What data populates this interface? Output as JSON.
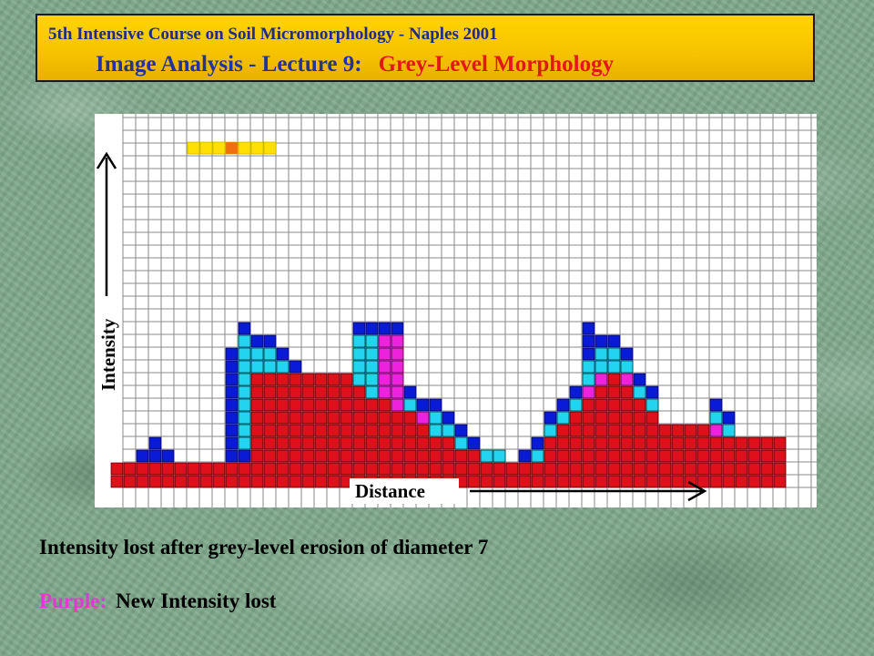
{
  "header": {
    "course": "5th Intensive Course on Soil Micromorphology - Naples 2001",
    "lecture": "Image Analysis - Lecture 9:",
    "topic": "Grey-Level Morphology"
  },
  "figure": {
    "y_axis_label": "Intensity",
    "x_axis_label": "Distance",
    "structuring_element_cells": 7,
    "colors": {
      "red": "#e0101a",
      "blue": "#0a1bd8",
      "cyan": "#22d4f0",
      "purple": "#ee22dd",
      "yellow": "#ffe000",
      "orange": "#f07010",
      "grid": "#8a8a8a"
    },
    "columns": [
      {
        "red": 2
      },
      {
        "red": 2
      },
      {
        "red": 2,
        "blue": 1
      },
      {
        "red": 2,
        "blue": 2
      },
      {
        "red": 2,
        "blue": 1
      },
      {
        "red": 2
      },
      {
        "red": 2
      },
      {
        "red": 2
      },
      {
        "red": 2
      },
      {
        "red": 2,
        "blue": 9
      },
      {
        "red": 2,
        "blue": 1,
        "cyan": 9,
        "blue_top": 1
      },
      {
        "red": 9,
        "cyan": 2,
        "blue_top": 1
      },
      {
        "red": 9,
        "cyan": 2,
        "blue_top": 1
      },
      {
        "red": 9,
        "cyan": 1,
        "blue_top": 1
      },
      {
        "red": 9,
        "blue_top": 1
      },
      {
        "red": 9
      },
      {
        "red": 9
      },
      {
        "red": 9
      },
      {
        "red": 9
      },
      {
        "red": 8,
        "cyan": 4,
        "blue_top": 1
      },
      {
        "red": 7,
        "cyan": 5,
        "blue_top": 1
      },
      {
        "red": 7,
        "purple": 5,
        "blue_top": 1
      },
      {
        "red": 6,
        "purple": 6,
        "blue_top": 1
      },
      {
        "red": 6,
        "cyan": 1,
        "blue_top": 1
      },
      {
        "red": 5,
        "purple": 1,
        "cyan": 0,
        "blue_top": 1
      },
      {
        "red": 4,
        "cyan": 2,
        "blue_top": 1
      },
      {
        "red": 4,
        "cyan": 1,
        "blue_top": 1
      },
      {
        "red": 3,
        "cyan": 1,
        "blue_top": 1
      },
      {
        "red": 3,
        "blue_top": 1
      },
      {
        "red": 2,
        "cyan": 1
      },
      {
        "red": 2,
        "cyan": 1
      },
      {
        "red": 2
      },
      {
        "red": 2,
        "blue": 1
      },
      {
        "red": 2,
        "cyan": 1,
        "blue_top": 1
      },
      {
        "red": 4,
        "cyan": 1,
        "blue_top": 1
      },
      {
        "red": 5,
        "cyan": 1,
        "blue_top": 1
      },
      {
        "red": 6,
        "cyan": 1,
        "blue_top": 1
      },
      {
        "red": 7,
        "purple": 1,
        "cyan": 2,
        "blue_top": 3
      },
      {
        "red": 8,
        "purple": 1,
        "cyan": 2,
        "blue_top": 1
      },
      {
        "red": 9,
        "purple": 0,
        "cyan": 2,
        "blue_top": 1
      },
      {
        "red": 8,
        "purple": 1,
        "cyan": 1,
        "blue_top": 1
      },
      {
        "red": 7,
        "cyan": 1,
        "blue_top": 1
      },
      {
        "red": 6,
        "cyan": 1,
        "blue_top": 1
      },
      {
        "red": 5
      },
      {
        "red": 5
      },
      {
        "red": 5
      },
      {
        "red": 5
      },
      {
        "red": 4,
        "purple": 1,
        "cyan": 1,
        "blue_top": 1
      },
      {
        "red": 4,
        "cyan": 1,
        "blue_top": 1
      },
      {
        "red": 4
      },
      {
        "red": 4
      },
      {
        "red": 4
      },
      {
        "red": 4
      }
    ]
  },
  "caption": "Intensity lost after grey-level erosion of diameter 7",
  "legend": {
    "key": "Purple:",
    "text": "New Intensity lost"
  }
}
